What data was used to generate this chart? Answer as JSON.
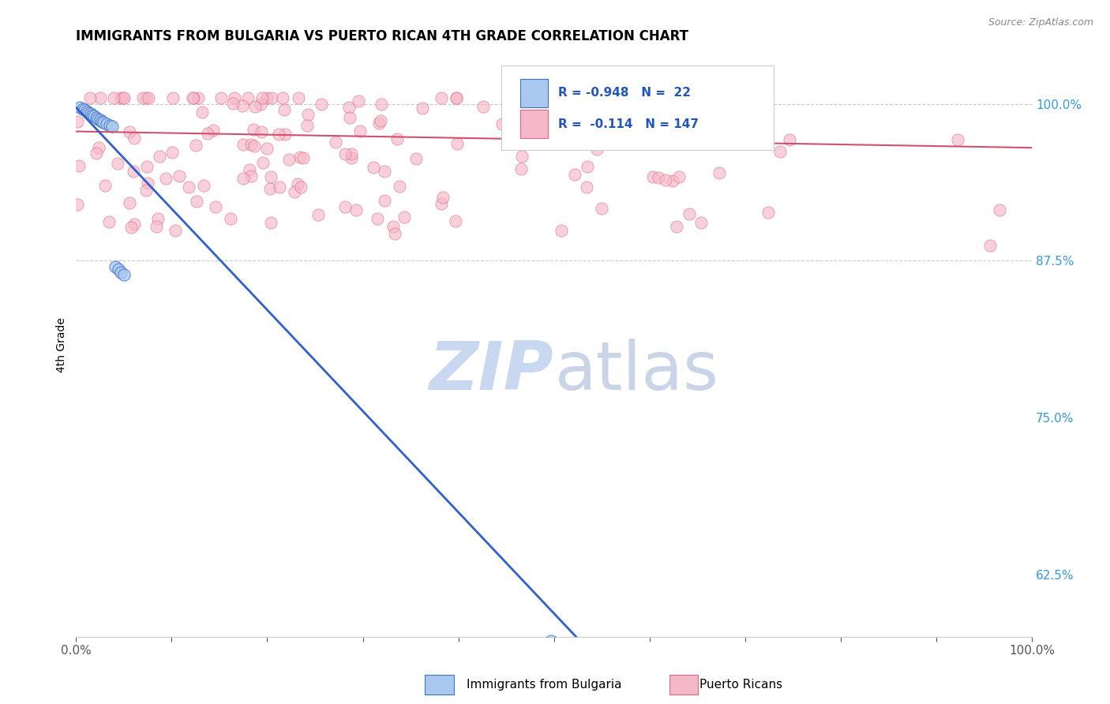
{
  "title": "IMMIGRANTS FROM BULGARIA VS PUERTO RICAN 4TH GRADE CORRELATION CHART",
  "source": "Source: ZipAtlas.com",
  "ylabel": "4th Grade",
  "ytick_labels": [
    "62.5%",
    "75.0%",
    "87.5%",
    "100.0%"
  ],
  "ytick_values": [
    0.625,
    0.75,
    0.875,
    1.0
  ],
  "color_blue": "#A8C8F0",
  "color_pink": "#F5B8C8",
  "color_blue_edge": "#4070C0",
  "color_pink_edge": "#E06880",
  "color_blue_line": "#3060D0",
  "color_pink_line": "#D05070",
  "watermark_zip": "#C8D8F0",
  "watermark_atlas": "#A8B8D8",
  "xlim": [
    0.0,
    1.0
  ],
  "ylim": [
    0.575,
    1.04
  ],
  "blue_line_x": [
    0.0,
    0.548
  ],
  "blue_line_y": [
    0.997,
    0.555
  ],
  "pink_line_x": [
    0.0,
    1.0
  ],
  "pink_line_y": [
    0.978,
    0.965
  ],
  "hline_y1": 1.0,
  "hline_y2": 0.875
}
